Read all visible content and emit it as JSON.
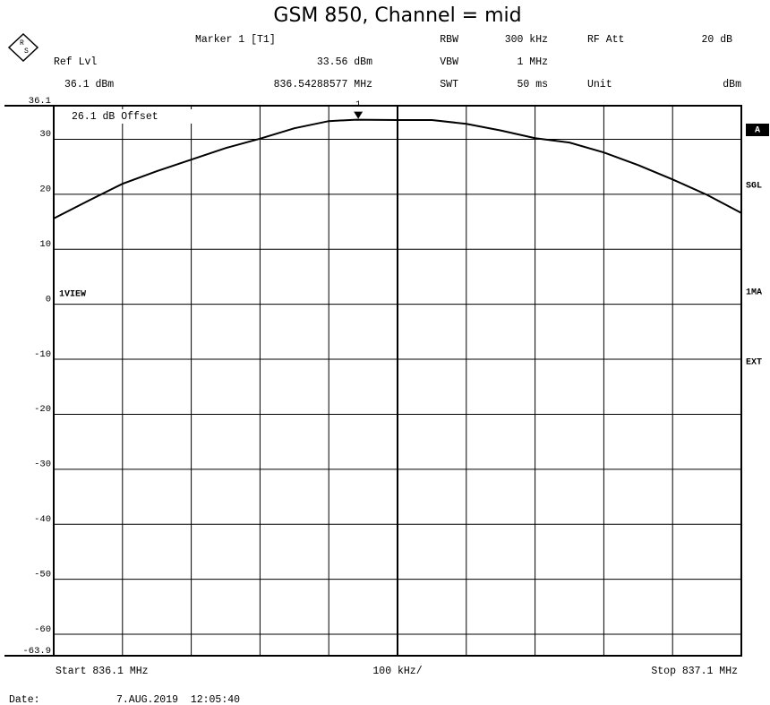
{
  "chart_data": {
    "type": "line",
    "title": "GSM 850, Channel = mid",
    "header": {
      "marker_name": "Marker 1 [T1]",
      "rbw_label": "RBW",
      "rbw": "300 kHz",
      "att_label": "RF Att",
      "att": "20 dB",
      "ref_label": "Ref Lvl",
      "marker_level": "33.56 dBm",
      "vbw_label": "VBW",
      "vbw": "1 MHz",
      "ref_level": "36.1 dBm",
      "marker_freq": "836.54288577 MHz",
      "swt_label": "SWT",
      "swt": "50 ms",
      "unit_label": "Unit",
      "unit": "dBm"
    },
    "annotations": {
      "offset": "26.1 dB Offset",
      "view": "1VIEW"
    },
    "side_labels": [
      "A",
      "SGL",
      "1MA",
      "EXT"
    ],
    "footer": {
      "start": "Start 836.1 MHz",
      "span": "100 kHz/",
      "stop": "Stop 837.1 MHz",
      "date_label": "Date:",
      "date": "7.AUG.2019  12:05:40"
    },
    "marker": {
      "label": "1",
      "x": 836.54288577,
      "y": 33.56
    },
    "x": [
      836.1,
      836.15,
      836.2,
      836.25,
      836.3,
      836.35,
      836.4,
      836.45,
      836.5,
      836.54,
      836.6,
      836.65,
      836.7,
      836.75,
      836.8,
      836.85,
      836.9,
      836.95,
      837.0,
      837.05,
      837.1
    ],
    "values": [
      15.6,
      18.8,
      21.9,
      24.2,
      26.3,
      28.4,
      30.1,
      32.0,
      33.3,
      33.56,
      33.5,
      33.5,
      32.8,
      31.6,
      30.2,
      29.4,
      27.6,
      25.3,
      22.7,
      19.9,
      16.6
    ],
    "color": "#000000",
    "xlim": [
      836.1,
      837.1
    ],
    "xticks": [
      836.1,
      836.2,
      836.3,
      836.4,
      836.5,
      836.6,
      836.7,
      836.8,
      836.9,
      837.0,
      837.1
    ],
    "ylim": [
      -63.9,
      36.1
    ],
    "yticks": [
      36.1,
      30,
      20,
      10,
      0,
      -10,
      -20,
      -30,
      -40,
      -50,
      -60,
      -63.9
    ],
    "grid": true
  }
}
